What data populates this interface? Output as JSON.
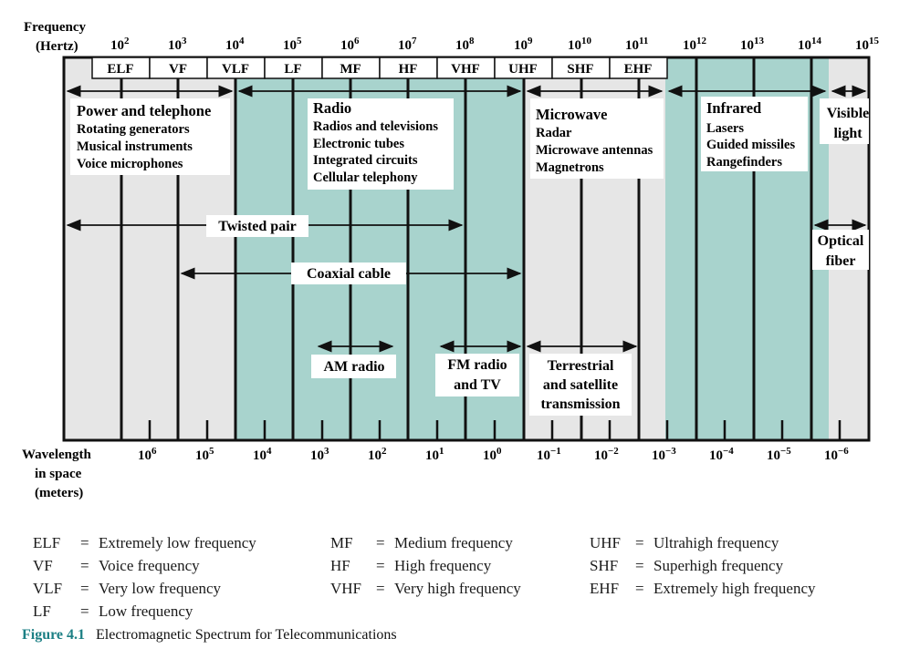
{
  "header": {
    "freq_label_line1": "Frequency",
    "freq_label_line2": "(Hertz)",
    "wave_label_line1": "Wavelength",
    "wave_label_line2": "in space",
    "wave_label_line3": "(meters)"
  },
  "freq_ticks": [
    {
      "base": "10",
      "exp": "2"
    },
    {
      "base": "10",
      "exp": "3"
    },
    {
      "base": "10",
      "exp": "4"
    },
    {
      "base": "10",
      "exp": "5"
    },
    {
      "base": "10",
      "exp": "6"
    },
    {
      "base": "10",
      "exp": "7"
    },
    {
      "base": "10",
      "exp": "8"
    },
    {
      "base": "10",
      "exp": "9"
    },
    {
      "base": "10",
      "exp": "10"
    },
    {
      "base": "10",
      "exp": "11"
    },
    {
      "base": "10",
      "exp": "12"
    },
    {
      "base": "10",
      "exp": "13"
    },
    {
      "base": "10",
      "exp": "14"
    },
    {
      "base": "10",
      "exp": "15"
    }
  ],
  "wave_ticks": [
    {
      "base": "10",
      "exp": "6"
    },
    {
      "base": "10",
      "exp": "5"
    },
    {
      "base": "10",
      "exp": "4"
    },
    {
      "base": "10",
      "exp": "3"
    },
    {
      "base": "10",
      "exp": "2"
    },
    {
      "base": "10",
      "exp": "1"
    },
    {
      "base": "10",
      "exp": "0"
    },
    {
      "base": "10",
      "exp": "−1"
    },
    {
      "base": "10",
      "exp": "−2"
    },
    {
      "base": "10",
      "exp": "−3"
    },
    {
      "base": "10",
      "exp": "−4"
    },
    {
      "base": "10",
      "exp": "−5"
    },
    {
      "base": "10",
      "exp": "−6"
    }
  ],
  "bands": [
    "ELF",
    "VF",
    "VLF",
    "LF",
    "MF",
    "HF",
    "VHF",
    "UHF",
    "SHF",
    "EHF"
  ],
  "boxes": {
    "power": [
      "Power and telephone",
      "Rotating generators",
      "Musical instruments",
      "Voice microphones"
    ],
    "radio": [
      "Radio",
      "Radios and televisions",
      "Electronic tubes",
      "Integrated circuits",
      "Cellular telephony"
    ],
    "microwave": [
      "Microwave",
      "Radar",
      "Microwave antennas",
      "Magnetrons"
    ],
    "infrared": [
      "Infrared",
      "Lasers",
      "Guided missiles",
      "Rangefinders"
    ],
    "visible": [
      "Visible",
      "light"
    ],
    "twisted_pair": "Twisted pair",
    "coaxial": "Coaxial cable",
    "optical": [
      "Optical",
      "fiber"
    ],
    "am_radio": "AM radio",
    "fm_radio": [
      "FM radio",
      "and TV"
    ],
    "terrestrial": [
      "Terrestrial",
      "and satellite",
      "transmission"
    ]
  },
  "legend": [
    {
      "abbr": "ELF",
      "eq": "=",
      "desc": "Extremely low frequency"
    },
    {
      "abbr": "VF",
      "eq": "=",
      "desc": "Voice frequency"
    },
    {
      "abbr": "VLF",
      "eq": "=",
      "desc": "Very low frequency"
    },
    {
      "abbr": "LF",
      "eq": "=",
      "desc": "Low frequency"
    },
    {
      "abbr": "MF",
      "eq": "=",
      "desc": "Medium frequency"
    },
    {
      "abbr": "HF",
      "eq": "=",
      "desc": "High frequency"
    },
    {
      "abbr": "VHF",
      "eq": "=",
      "desc": "Very high frequency"
    },
    {
      "abbr": "UHF",
      "eq": "=",
      "desc": "Ultrahigh frequency"
    },
    {
      "abbr": "SHF",
      "eq": "=",
      "desc": "Superhigh frequency"
    },
    {
      "abbr": "EHF",
      "eq": "=",
      "desc": "Extremely high frequency"
    }
  ],
  "caption": {
    "figure": "Figure 4.1",
    "title": "Electromagnetic Spectrum for Telecommunications"
  },
  "colors": {
    "teal": "#a8d3cd",
    "gray": "#e6e6e6",
    "caption": "#1b7f84"
  }
}
